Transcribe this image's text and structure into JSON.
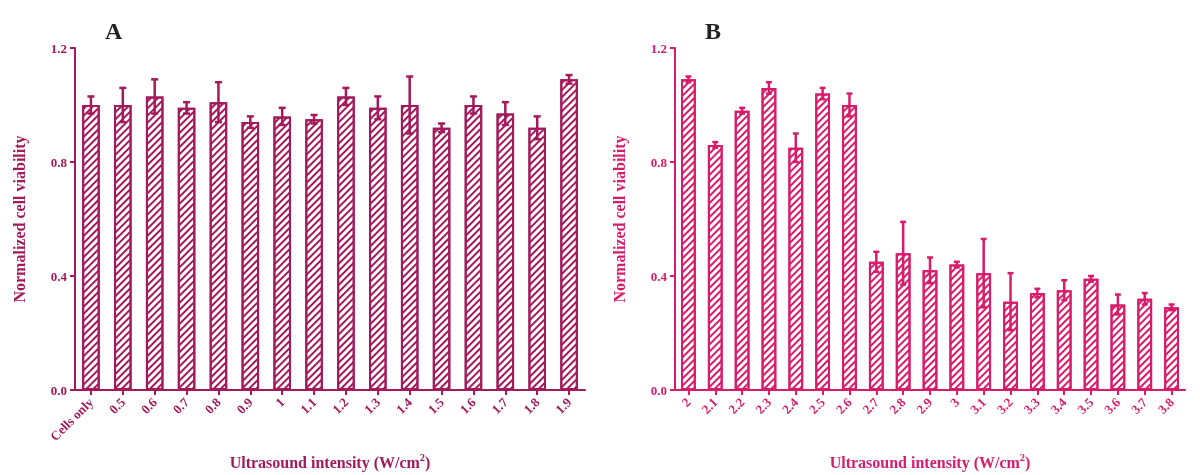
{
  "chart_data": [
    {
      "type": "bar",
      "title": "A",
      "xlabel": "Ultrasound intensity (W/cm$^{2}$)",
      "ylabel": "Normalized cell viability",
      "categories": [
        "Cells only",
        "0.5",
        "0.6",
        "0.7",
        "0.8",
        "0.9",
        "1",
        "1.1",
        "1.2",
        "1.3",
        "1.4",
        "1.5",
        "1.6",
        "1.7",
        "1.8",
        "1.9"
      ],
      "values": [
        1.0,
        1.0,
        1.03,
        0.99,
        1.01,
        0.94,
        0.96,
        0.95,
        1.03,
        0.99,
        1.0,
        0.92,
        1.0,
        0.97,
        0.92,
        1.09
      ],
      "errors": [
        0.03,
        0.06,
        0.06,
        0.02,
        0.07,
        0.02,
        0.03,
        0.015,
        0.03,
        0.04,
        0.1,
        0.015,
        0.03,
        0.04,
        0.04,
        0.015
      ],
      "color": "#a3195b",
      "ylim": [
        0,
        1.2
      ],
      "yticks": [
        {
          "value": 0,
          "label": "0.0"
        },
        {
          "value": 0.4,
          "label": "0.4"
        },
        {
          "value": 0.8,
          "label": "0.8"
        },
        {
          "value": 1.2,
          "label": "1.2"
        }
      ],
      "grid": false
    },
    {
      "type": "bar",
      "title": "B",
      "xlabel": "Ultrasound intensity (W/cm$^{2}$)",
      "ylabel": "Normalized cell viability",
      "categories": [
        "2",
        "2.1",
        "2.2",
        "2.3",
        "2.4",
        "2.5",
        "2.6",
        "2.7",
        "2.8",
        "2.9",
        "3",
        "3.1",
        "3.2",
        "3.3",
        "3.4",
        "3.5",
        "3.6",
        "3.7",
        "3.8"
      ],
      "values": [
        1.09,
        0.86,
        0.98,
        1.06,
        0.85,
        1.04,
        1.0,
        0.45,
        0.48,
        0.42,
        0.44,
        0.41,
        0.31,
        0.34,
        0.35,
        0.39,
        0.3,
        0.32,
        0.29
      ],
      "errors": [
        0.01,
        0.01,
        0.01,
        0.02,
        0.05,
        0.02,
        0.04,
        0.035,
        0.11,
        0.045,
        0.01,
        0.12,
        0.1,
        0.015,
        0.035,
        0.01,
        0.035,
        0.02,
        0.01
      ],
      "color": "#d81b6a",
      "ylim": [
        0,
        1.2
      ],
      "yticks": [
        {
          "value": 0,
          "label": "0.0"
        },
        {
          "value": 0.4,
          "label": "0.4"
        },
        {
          "value": 0.8,
          "label": "0.8"
        },
        {
          "value": 1.2,
          "label": "1.2"
        }
      ],
      "grid": false
    }
  ]
}
